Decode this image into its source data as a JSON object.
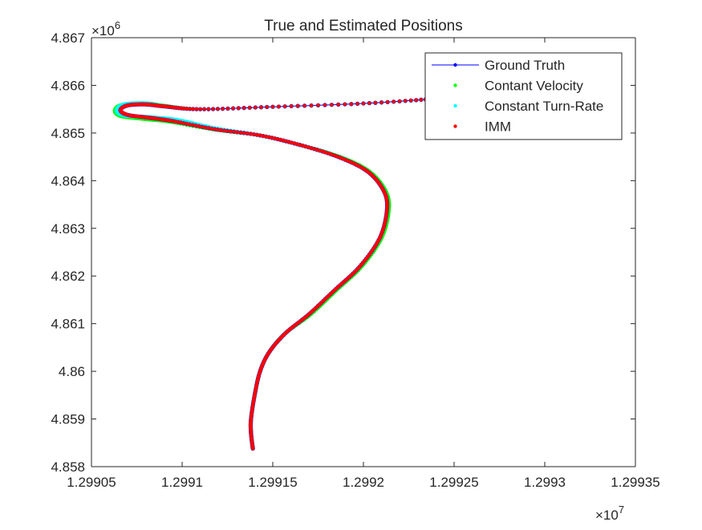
{
  "chart_data": {
    "type": "line",
    "title": "True and Estimated Positions",
    "xlabel": "",
    "ylabel": "",
    "x_exponent_label": "×10",
    "x_exponent_power": "7",
    "y_exponent_label": "×10",
    "y_exponent_power": "6",
    "xlim": [
      1.29905,
      1.29935
    ],
    "ylim": [
      4.858,
      4.867
    ],
    "x_ticks": [
      1.29905,
      1.2991,
      1.29915,
      1.2992,
      1.29925,
      1.2993,
      1.29935
    ],
    "x_tick_labels": [
      "1.29905",
      "1.2991",
      "1.29915",
      "1.2992",
      "1.29925",
      "1.2993",
      "1.29935"
    ],
    "y_ticks": [
      4.858,
      4.859,
      4.86,
      4.861,
      4.862,
      4.863,
      4.864,
      4.865,
      4.866,
      4.867
    ],
    "y_tick_labels": [
      "4.858",
      "4.859",
      "4.86",
      "4.861",
      "4.862",
      "4.863",
      "4.864",
      "4.865",
      "4.866",
      "4.867"
    ],
    "grid": false,
    "legend_position": "top-right",
    "series": [
      {
        "name": "Ground Truth",
        "color": "#0000ff",
        "style": "line-with-dot-markers",
        "x": [
          1.299139,
          1.299138,
          1.299138,
          1.29914,
          1.299143,
          1.299148,
          1.299157,
          1.29917,
          1.299184,
          1.299198,
          1.299209,
          1.299213,
          1.299211,
          1.299202,
          1.299186,
          1.299165,
          1.299143,
          1.299118,
          1.299095,
          1.299082,
          1.29907,
          1.299066,
          1.29907,
          1.29908,
          1.29909,
          1.29911,
          1.29915,
          1.2992,
          1.29924
        ],
        "y": [
          4.85838,
          4.8587,
          4.859,
          4.8595,
          4.86,
          4.8604,
          4.8608,
          4.8612,
          4.8617,
          4.8622,
          4.8628,
          4.8634,
          4.8638,
          4.8642,
          4.8645,
          4.86475,
          4.86495,
          4.86508,
          4.86525,
          4.86532,
          4.86538,
          4.86548,
          4.86558,
          4.8656,
          4.86556,
          4.8655,
          4.86555,
          4.86562,
          4.86572
        ]
      },
      {
        "name": "Contant Velocity",
        "color": "#00ff00",
        "style": "dot-markers",
        "x": [
          1.299139,
          1.299138,
          1.299138,
          1.29914,
          1.299143,
          1.299148,
          1.299157,
          1.299171,
          1.299185,
          1.299199,
          1.29921,
          1.299214,
          1.299212,
          1.299203,
          1.299187,
          1.299165,
          1.299143,
          1.299117,
          1.299093,
          1.299078,
          1.299066,
          1.299063,
          1.299067,
          1.29908,
          1.29909,
          1.29911,
          1.29915,
          1.2992,
          1.29924
        ],
        "y": [
          4.85838,
          4.8587,
          4.859,
          4.8595,
          4.86,
          4.8604,
          4.8608,
          4.8612,
          4.8617,
          4.8622,
          4.8628,
          4.8634,
          4.8638,
          4.8642,
          4.8645,
          4.86475,
          4.86495,
          4.86508,
          4.86524,
          4.8653,
          4.86536,
          4.86548,
          4.86559,
          4.86562,
          4.86557,
          4.8655,
          4.86555,
          4.86562,
          4.86572
        ]
      },
      {
        "name": "Constant Turn-Rate",
        "color": "#00ffff",
        "style": "dot-markers",
        "x": [
          1.299139,
          1.299138,
          1.299138,
          1.29914,
          1.299143,
          1.299148,
          1.299157,
          1.29917,
          1.299184,
          1.299198,
          1.299209,
          1.299213,
          1.299211,
          1.299202,
          1.299186,
          1.299165,
          1.299143,
          1.299118,
          1.299098,
          1.299083,
          1.299068,
          1.299064,
          1.299068,
          1.29908,
          1.29909,
          1.29911,
          1.29915,
          1.2992,
          1.29924
        ],
        "y": [
          4.85838,
          4.8587,
          4.859,
          4.8595,
          4.86,
          4.8604,
          4.8608,
          4.8612,
          4.8617,
          4.8622,
          4.8628,
          4.8634,
          4.8638,
          4.8642,
          4.8645,
          4.86475,
          4.86495,
          4.8651,
          4.86527,
          4.86533,
          4.86537,
          4.86548,
          4.8656,
          4.86562,
          4.86556,
          4.8655,
          4.86555,
          4.86562,
          4.86572
        ]
      },
      {
        "name": "IMM",
        "color": "#ff0000",
        "style": "dot-markers",
        "x": [
          1.299139,
          1.299138,
          1.299138,
          1.29914,
          1.299143,
          1.299148,
          1.299157,
          1.29917,
          1.299184,
          1.299198,
          1.299209,
          1.299213,
          1.299211,
          1.299202,
          1.299186,
          1.299165,
          1.299143,
          1.299118,
          1.299095,
          1.299082,
          1.29907,
          1.299066,
          1.29907,
          1.29908,
          1.29909,
          1.29911,
          1.29915,
          1.2992,
          1.29924
        ],
        "y": [
          4.85838,
          4.8587,
          4.859,
          4.8595,
          4.86,
          4.8604,
          4.8608,
          4.8612,
          4.8617,
          4.8622,
          4.8628,
          4.8634,
          4.8638,
          4.8642,
          4.8645,
          4.86475,
          4.86495,
          4.86508,
          4.86525,
          4.86532,
          4.86538,
          4.86548,
          4.86558,
          4.8656,
          4.86556,
          4.8655,
          4.86555,
          4.86562,
          4.86572
        ]
      }
    ]
  }
}
